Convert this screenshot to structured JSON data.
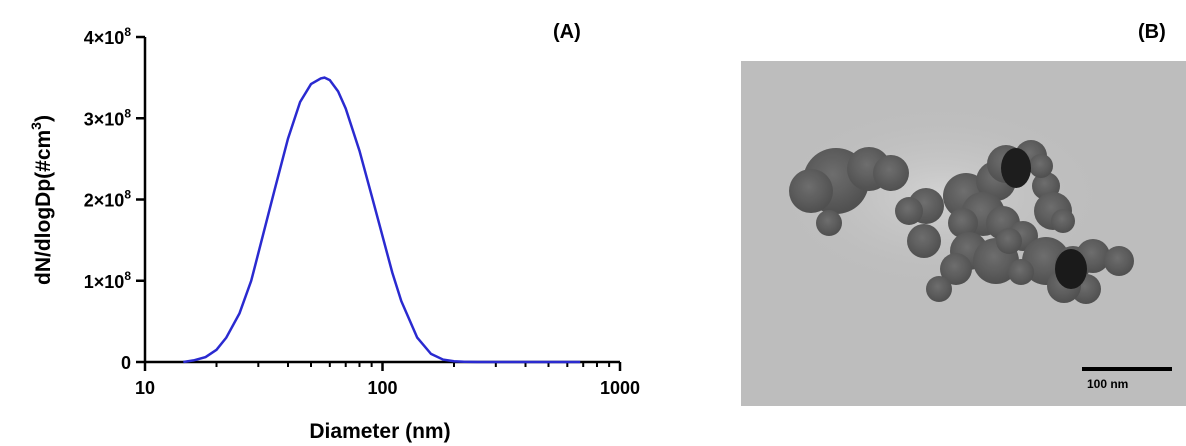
{
  "panels": {
    "a_label": "(A)",
    "b_label": "(B)"
  },
  "chart_data": {
    "type": "line",
    "title": "",
    "xlabel": "Diameter (nm)",
    "ylabel": "dN/dlogDp(#cm³)",
    "xscale": "log",
    "xlim": [
      10,
      1000
    ],
    "ylim": [
      0,
      400000000
    ],
    "xticks": [
      {
        "value": 10,
        "label": "10"
      },
      {
        "value": 100,
        "label": "100"
      },
      {
        "value": 1000,
        "label": "1000"
      }
    ],
    "yticks": [
      {
        "value": 0,
        "label": "0",
        "exp": ""
      },
      {
        "value": 100000000,
        "label": "1×10",
        "exp": "8"
      },
      {
        "value": 200000000,
        "label": "2×10",
        "exp": "8"
      },
      {
        "value": 300000000,
        "label": "3×10",
        "exp": "8"
      },
      {
        "value": 400000000,
        "label": "4×10",
        "exp": "8"
      }
    ],
    "grid": false,
    "line_color": "#2a2ad0",
    "series": [
      {
        "x": [
          14.5,
          16,
          18,
          20,
          22,
          25,
          28,
          31,
          35,
          40,
          45,
          50,
          55,
          57,
          60,
          65,
          70,
          80,
          90,
          100,
          110,
          120,
          140,
          160,
          180,
          200,
          220,
          250,
          300,
          400,
          500,
          680
        ],
        "y": [
          0,
          2000000,
          6000000,
          15000000,
          30000000,
          60000000,
          100000000,
          150000000,
          210000000,
          275000000,
          320000000,
          342000000,
          349000000,
          350000000,
          347000000,
          333000000,
          312000000,
          260000000,
          205000000,
          155000000,
          110000000,
          75000000,
          30000000,
          10000000,
          3000000,
          1000000,
          300000,
          0,
          0,
          0,
          0,
          0
        ]
      }
    ]
  },
  "tem_image": {
    "scale_bar_label": "100 nm"
  }
}
